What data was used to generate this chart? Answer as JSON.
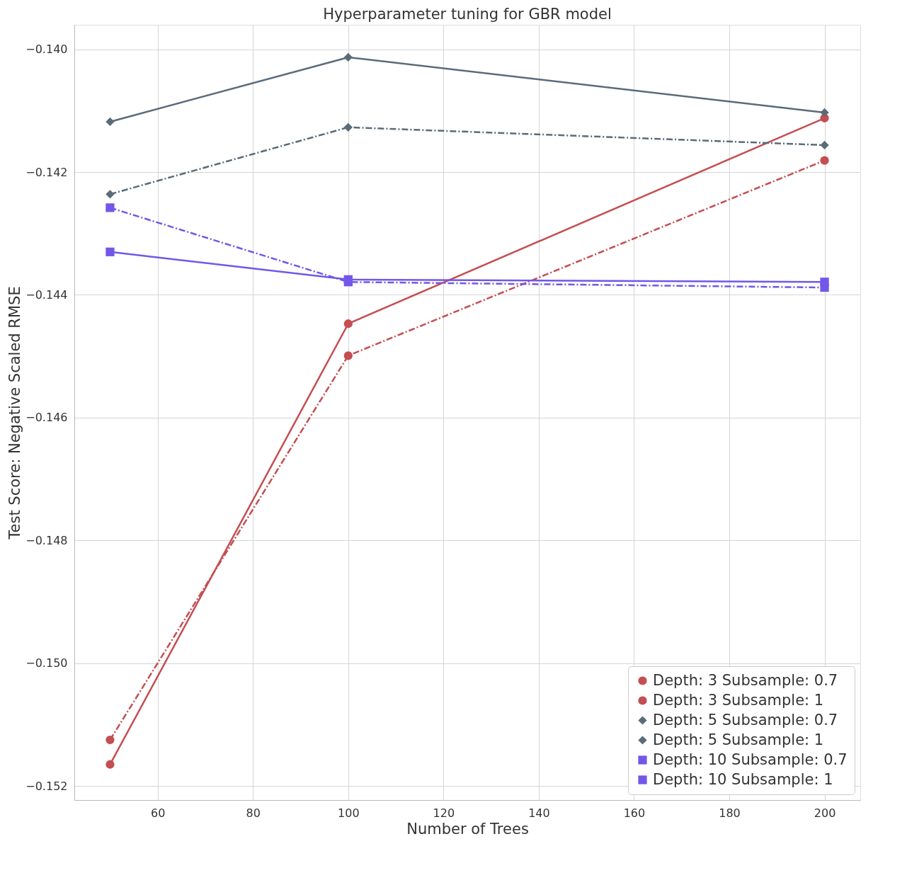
{
  "chart_data": {
    "type": "line",
    "title": "Hyperparameter tuning for GBR model",
    "xlabel": "Number of Trees",
    "ylabel": "Test Score: Negative Scaled RMSE",
    "x": [
      50,
      100,
      200
    ],
    "series": [
      {
        "name": "Depth: 3 Subsample: 0.7",
        "color": "#c44e52",
        "marker": "circle",
        "line_style": "dashdot",
        "values": [
          -0.15125,
          -0.14499,
          -0.14181
        ]
      },
      {
        "name": "Depth: 3 Subsample: 1",
        "color": "#c44e52",
        "marker": "circle",
        "line_style": "solid",
        "values": [
          -0.15165,
          -0.14447,
          -0.14112
        ]
      },
      {
        "name": "Depth: 5 Subsample: 0.7",
        "color": "#5a6b7a",
        "marker": "diamond",
        "line_style": "dashdot",
        "values": [
          -0.14236,
          -0.14127,
          -0.14156
        ]
      },
      {
        "name": "Depth: 5 Subsample: 1",
        "color": "#5a6b7a",
        "marker": "diamond",
        "line_style": "solid",
        "values": [
          -0.14118,
          -0.14013,
          -0.14103
        ]
      },
      {
        "name": "Depth: 10 Subsample: 0.7",
        "color": "#7257e8",
        "marker": "square",
        "line_style": "dashdot",
        "values": [
          -0.14258,
          -0.14379,
          -0.14388
        ]
      },
      {
        "name": "Depth: 10 Subsample: 1",
        "color": "#7257e8",
        "marker": "square",
        "line_style": "solid",
        "values": [
          -0.1433,
          -0.14375,
          -0.14379
        ]
      }
    ],
    "xlim": [
      42.5,
      207.5
    ],
    "ylim": [
      -0.15223,
      -0.1396
    ],
    "xticks": [
      60,
      80,
      100,
      120,
      140,
      160,
      180,
      200
    ],
    "yticks": [
      {
        "value": -0.152,
        "label": "−0.152"
      },
      {
        "value": -0.15,
        "label": "−0.150"
      },
      {
        "value": -0.148,
        "label": "−0.148"
      },
      {
        "value": -0.146,
        "label": "−0.146"
      },
      {
        "value": -0.144,
        "label": "−0.144"
      },
      {
        "value": -0.142,
        "label": "−0.142"
      },
      {
        "value": -0.14,
        "label": "−0.140"
      }
    ],
    "grid": true,
    "legend": "bottom right"
  }
}
